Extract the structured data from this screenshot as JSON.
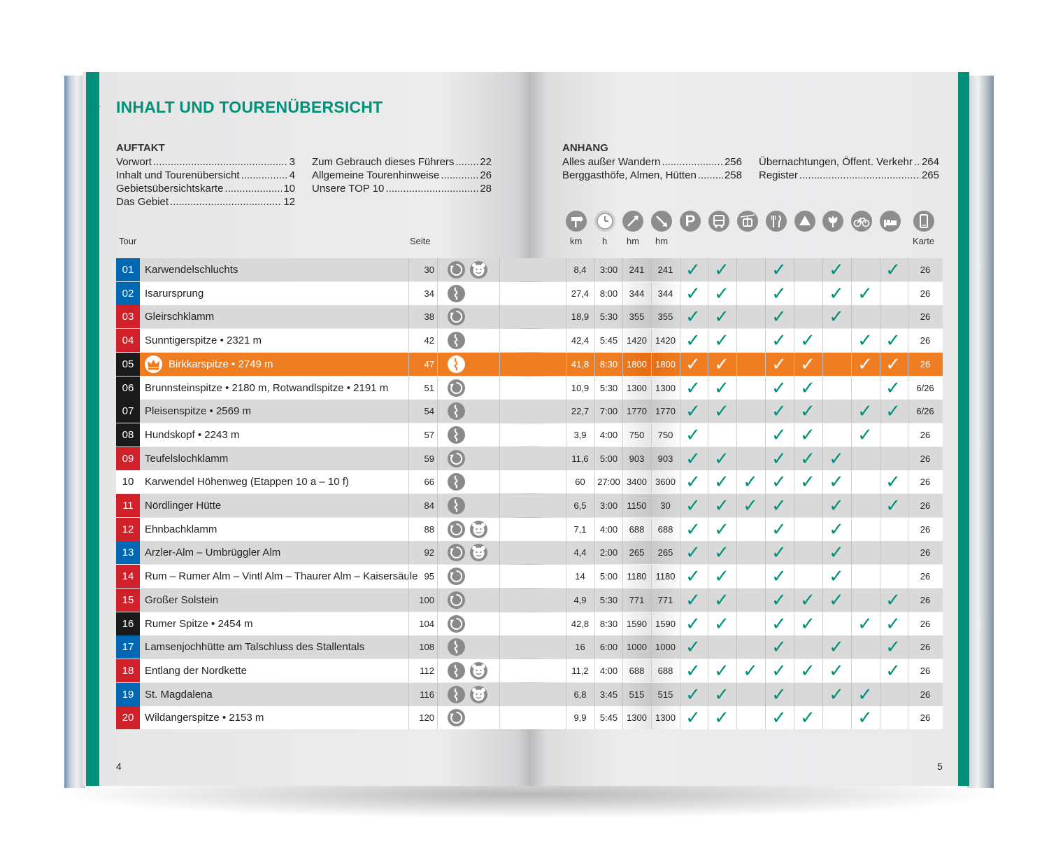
{
  "title": "INHALT UND TOURENÜBERSICHT",
  "auftakt": {
    "heading": "AUFTAKT",
    "col1": [
      {
        "label": "Vorwort",
        "page": "3"
      },
      {
        "label": "Inhalt und Tourenübersicht",
        "page": "4"
      },
      {
        "label": "Gebietsübersichtskarte",
        "page": "10"
      },
      {
        "label": "Das Gebiet",
        "page": "12"
      }
    ],
    "col2": [
      {
        "label": "Zum Gebrauch dieses Führers",
        "page": "22"
      },
      {
        "label": "Allgemeine Tourenhinweise",
        "page": "26"
      },
      {
        "label": "Unsere TOP 10",
        "page": "28"
      }
    ]
  },
  "anhang": {
    "heading": "ANHANG",
    "col1": [
      {
        "label": "Alles außer Wandern",
        "page": "256"
      },
      {
        "label": "Berggasthöfe, Almen, Hütten",
        "page": "258"
      }
    ],
    "col2": [
      {
        "label": "Übernachtungen, Öffent. Verkehr",
        "page": "264"
      },
      {
        "label": "Register",
        "page": "265"
      }
    ]
  },
  "headers": {
    "tour": "Tour",
    "seite": "Seite",
    "km": "km",
    "h": "h",
    "hm_up": "hm",
    "hm_down": "hm",
    "karte": "Karte"
  },
  "header_icons": [
    "signpost-icon",
    "clock-icon",
    "ascent-icon",
    "descent-icon",
    "parking-icon",
    "bus-icon",
    "cable-car-icon",
    "restaurant-icon",
    "camping-icon",
    "flower-icon",
    "bicycle-icon",
    "bed-icon",
    "map-icon"
  ],
  "colors": {
    "teal": "#00907a",
    "blue": "#0068b3",
    "red": "#d0202a",
    "black": "#1a1a1a",
    "orange": "#ef7d22"
  },
  "tours": [
    {
      "nr": "01",
      "color": "blue",
      "name": "Karwendelschluchts",
      "seite": "30",
      "type": [
        "loop",
        "kids"
      ],
      "km": "8,4",
      "h": "3:00",
      "hm_up": "241",
      "hm_down": "241",
      "checks": [
        1,
        1,
        0,
        1,
        0,
        1,
        0,
        1
      ],
      "karte": "26"
    },
    {
      "nr": "02",
      "color": "blue",
      "name": "Isarursprung",
      "seite": "34",
      "type": [
        "line"
      ],
      "km": "27,4",
      "h": "8:00",
      "hm_up": "344",
      "hm_down": "344",
      "checks": [
        1,
        1,
        0,
        1,
        0,
        1,
        1,
        0
      ],
      "karte": "26"
    },
    {
      "nr": "03",
      "color": "red",
      "name": "Gleirschklamm",
      "seite": "38",
      "type": [
        "loop"
      ],
      "km": "18,9",
      "h": "5:30",
      "hm_up": "355",
      "hm_down": "355",
      "checks": [
        1,
        1,
        0,
        1,
        0,
        1,
        0,
        0
      ],
      "karte": "26"
    },
    {
      "nr": "04",
      "color": "red",
      "name": "Sunntigerspitze • 2321 m",
      "seite": "42",
      "type": [
        "line"
      ],
      "km": "42,4",
      "h": "5:45",
      "hm_up": "1420",
      "hm_down": "1420",
      "checks": [
        1,
        1,
        0,
        1,
        1,
        0,
        1,
        1
      ],
      "karte": "26"
    },
    {
      "nr": "05",
      "color": "black",
      "name": "Birkkarspitze • 2749 m",
      "seite": "47",
      "type": [
        "line"
      ],
      "km": "41,8",
      "h": "8:30",
      "hm_up": "1800",
      "hm_down": "1800",
      "checks": [
        1,
        1,
        0,
        1,
        1,
        0,
        1,
        1
      ],
      "karte": "26",
      "highlight": true
    },
    {
      "nr": "06",
      "color": "black",
      "name": "Brunnsteinspitze • 2180 m, Rotwandlspitze • 2191 m",
      "seite": "51",
      "type": [
        "loop"
      ],
      "km": "10,9",
      "h": "5:30",
      "hm_up": "1300",
      "hm_down": "1300",
      "checks": [
        1,
        1,
        0,
        1,
        1,
        0,
        0,
        1
      ],
      "karte": "6/26"
    },
    {
      "nr": "07",
      "color": "black",
      "name": "Pleisenspitze • 2569 m",
      "seite": "54",
      "type": [
        "line"
      ],
      "km": "22,7",
      "h": "7:00",
      "hm_up": "1770",
      "hm_down": "1770",
      "checks": [
        1,
        1,
        0,
        1,
        1,
        0,
        1,
        1
      ],
      "karte": "6/26"
    },
    {
      "nr": "08",
      "color": "black",
      "name": "Hundskopf • 2243 m",
      "seite": "57",
      "type": [
        "line"
      ],
      "km": "3,9",
      "h": "4:00",
      "hm_up": "750",
      "hm_down": "750",
      "checks": [
        1,
        0,
        0,
        1,
        1,
        0,
        1,
        0
      ],
      "karte": "26"
    },
    {
      "nr": "09",
      "color": "red",
      "name": "Teufelslochklamm",
      "seite": "59",
      "type": [
        "loop"
      ],
      "km": "11,6",
      "h": "5:00",
      "hm_up": "903",
      "hm_down": "903",
      "checks": [
        1,
        1,
        0,
        1,
        1,
        1,
        0,
        0
      ],
      "karte": "26"
    },
    {
      "nr": "10",
      "color": "white",
      "name": "Karwendel Höhenweg (Etappen 10 a – 10 f)",
      "seite": "66",
      "type": [
        "line"
      ],
      "km": "60",
      "h": "27:00",
      "hm_up": "3400",
      "hm_down": "3600",
      "checks": [
        1,
        1,
        1,
        1,
        1,
        1,
        0,
        1
      ],
      "karte": "26"
    },
    {
      "nr": "11",
      "color": "red",
      "name": "Nördlinger Hütte",
      "seite": "84",
      "type": [
        "line"
      ],
      "km": "6,5",
      "h": "3:00",
      "hm_up": "1150",
      "hm_down": "30",
      "checks": [
        1,
        1,
        1,
        1,
        0,
        1,
        0,
        1
      ],
      "karte": "26"
    },
    {
      "nr": "12",
      "color": "red",
      "name": "Ehnbachklamm",
      "seite": "88",
      "type": [
        "loop",
        "kids"
      ],
      "km": "7,1",
      "h": "4:00",
      "hm_up": "688",
      "hm_down": "688",
      "checks": [
        1,
        1,
        0,
        1,
        0,
        1,
        0,
        0
      ],
      "karte": "26"
    },
    {
      "nr": "13",
      "color": "blue",
      "name": "Arzler-Alm – Umbrüggler Alm",
      "seite": "92",
      "type": [
        "loop",
        "kids"
      ],
      "km": "4,4",
      "h": "2:00",
      "hm_up": "265",
      "hm_down": "265",
      "checks": [
        1,
        1,
        0,
        1,
        0,
        1,
        0,
        0
      ],
      "karte": "26"
    },
    {
      "nr": "14",
      "color": "red",
      "name": "Rum – Rumer Alm – Vintl Alm – Thaurer Alm – Kaisersäule",
      "seite": "95",
      "type": [
        "loop"
      ],
      "km": "14",
      "h": "5:00",
      "hm_up": "1180",
      "hm_down": "1180",
      "checks": [
        1,
        1,
        0,
        1,
        0,
        1,
        0,
        0
      ],
      "karte": "26"
    },
    {
      "nr": "15",
      "color": "red",
      "name": "Großer Solstein",
      "seite": "100",
      "type": [
        "loop"
      ],
      "km": "4,9",
      "h": "5:30",
      "hm_up": "771",
      "hm_down": "771",
      "checks": [
        1,
        1,
        0,
        1,
        1,
        1,
        0,
        1
      ],
      "karte": "26"
    },
    {
      "nr": "16",
      "color": "black",
      "name": "Rumer Spitze • 2454 m",
      "seite": "104",
      "type": [
        "loop"
      ],
      "km": "42,8",
      "h": "8:30",
      "hm_up": "1590",
      "hm_down": "1590",
      "checks": [
        1,
        1,
        0,
        1,
        1,
        0,
        1,
        1
      ],
      "karte": "26"
    },
    {
      "nr": "17",
      "color": "blue",
      "name": "Lamsenjochhütte am Talschluss des Stallentals",
      "seite": "108",
      "type": [
        "line"
      ],
      "km": "16",
      "h": "6:00",
      "hm_up": "1000",
      "hm_down": "1000",
      "checks": [
        1,
        0,
        0,
        1,
        0,
        1,
        0,
        1
      ],
      "karte": "26"
    },
    {
      "nr": "18",
      "color": "red",
      "name": "Entlang der Nordkette",
      "seite": "112",
      "type": [
        "line",
        "kids"
      ],
      "km": "11,2",
      "h": "4:00",
      "hm_up": "688",
      "hm_down": "688",
      "checks": [
        1,
        1,
        1,
        1,
        1,
        1,
        0,
        1
      ],
      "karte": "26"
    },
    {
      "nr": "19",
      "color": "blue",
      "name": "St. Magdalena",
      "seite": "116",
      "type": [
        "line",
        "kids"
      ],
      "km": "6,8",
      "h": "3:45",
      "hm_up": "515",
      "hm_down": "515",
      "checks": [
        1,
        1,
        0,
        1,
        0,
        1,
        1,
        0
      ],
      "karte": "26"
    },
    {
      "nr": "20",
      "color": "red",
      "name": "Wildangerspitze • 2153 m",
      "seite": "120",
      "type": [
        "loop"
      ],
      "km": "9,9",
      "h": "5:45",
      "hm_up": "1300",
      "hm_down": "1300",
      "checks": [
        1,
        1,
        0,
        1,
        1,
        0,
        1,
        0
      ],
      "karte": "26"
    }
  ],
  "check_glyph": "✓",
  "page_left": "4",
  "page_right": "5"
}
